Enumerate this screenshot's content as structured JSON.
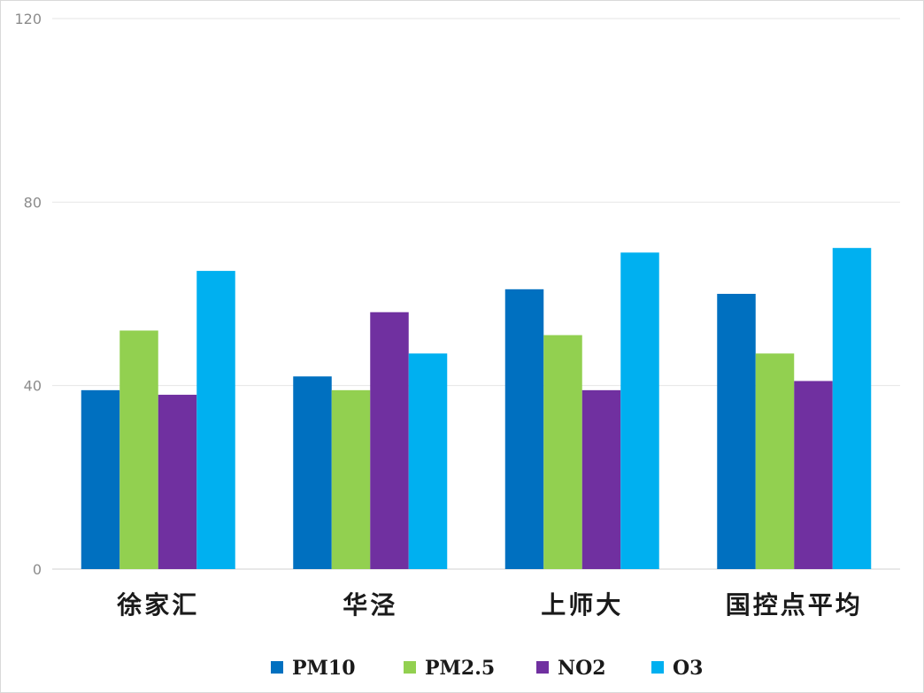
{
  "chart_data": {
    "type": "bar",
    "title": "",
    "xlabel": "",
    "ylabel": "",
    "categories": [
      "徐家汇",
      "华泾",
      "上师大",
      "国控点平均"
    ],
    "series": [
      {
        "name": "PM10",
        "color": "#0070c0",
        "values": [
          39,
          42,
          61,
          60
        ]
      },
      {
        "name": "PM2.5",
        "color": "#92d050",
        "values": [
          52,
          39,
          51,
          47
        ]
      },
      {
        "name": "NO2",
        "color": "#7030a0",
        "values": [
          38,
          56,
          39,
          41
        ]
      },
      {
        "name": "O3",
        "color": "#00b0f0",
        "values": [
          65,
          47,
          69,
          70
        ]
      }
    ],
    "ylim": [
      0,
      120
    ],
    "yticks": [
      0,
      40,
      80,
      120
    ],
    "grid": true,
    "legend_position": "bottom"
  }
}
